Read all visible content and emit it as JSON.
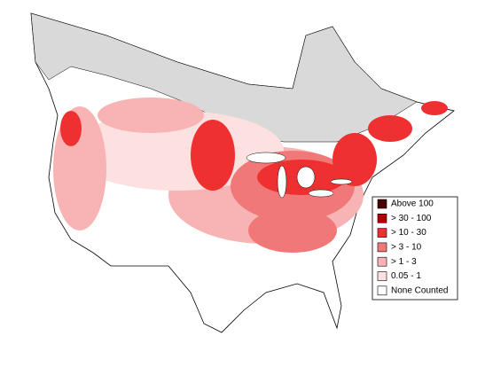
{
  "legend": {
    "items": [
      {
        "label": "Above 100",
        "color": "#4a0000"
      },
      {
        "label": "> 30 - 100",
        "color": "#b30000"
      },
      {
        "label": "> 10 - 30",
        "color": "#ee3030"
      },
      {
        "label": "> 3 - 10",
        "color": "#f07878"
      },
      {
        "label": "> 1 - 3",
        "color": "#f8b4b4"
      },
      {
        "label": "0.05 - 1",
        "color": "#fde0e0"
      },
      {
        "label": "None Counted",
        "color": "#ffffff"
      }
    ]
  }
}
